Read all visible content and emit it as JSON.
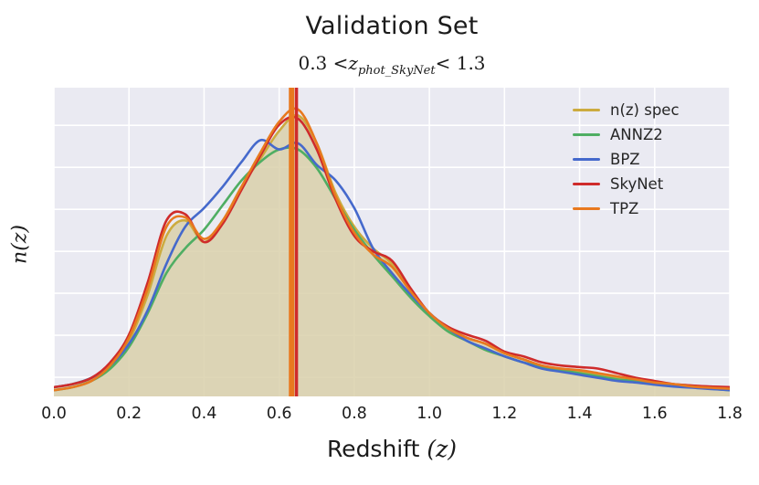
{
  "figure": {
    "title": "Validation Set",
    "subtitle_parts": {
      "prefix": "0.3 <",
      "var": "z",
      "sub": "phot_SkyNet",
      "suffix": "< 1.3"
    },
    "xlabel_text": "Redshift ",
    "xlabel_math": "(z)",
    "ylabel": "n(z)"
  },
  "chart_data": {
    "type": "line",
    "title": "Validation Set",
    "subtitle": "0.3 < z_phot_SkyNet < 1.3",
    "xlabel": "Redshift (z)",
    "ylabel": "n(z)",
    "xlim": [
      0.0,
      1.8
    ],
    "ylim": [
      0.0,
      1.0
    ],
    "xticks": [
      0.0,
      0.2,
      0.4,
      0.6,
      0.8,
      1.0,
      1.2,
      1.4,
      1.6,
      1.8
    ],
    "xtick_labels": [
      "0.0",
      "0.2",
      "0.4",
      "0.6",
      "0.8",
      "1.0",
      "1.2",
      "1.4",
      "1.6",
      "1.8"
    ],
    "ygridlines": [
      0.062,
      0.198,
      0.334,
      0.47,
      0.606,
      0.742,
      0.878
    ],
    "grid": true,
    "legend_position": "upper right",
    "colors": {
      "plot_bg": "#eaeaf2",
      "grid": "#ffffff",
      "fill": "rgba(217,208,170,0.85)",
      "text": "#1b1b1b"
    },
    "vlines": [
      {
        "x": 0.633,
        "color": "#e8791f",
        "width": 6
      },
      {
        "x": 0.646,
        "color": "#cf2b2b",
        "width": 3.5
      }
    ],
    "x": [
      0.0,
      0.05,
      0.1,
      0.15,
      0.2,
      0.25,
      0.3,
      0.35,
      0.4,
      0.45,
      0.5,
      0.55,
      0.6,
      0.65,
      0.7,
      0.75,
      0.8,
      0.85,
      0.9,
      0.95,
      1.0,
      1.05,
      1.1,
      1.15,
      1.2,
      1.25,
      1.3,
      1.35,
      1.4,
      1.45,
      1.5,
      1.55,
      1.6,
      1.65,
      1.7,
      1.75,
      1.8
    ],
    "series": [
      {
        "name": "n(z) spec",
        "color": "#ccab3f",
        "fill": true,
        "values": [
          0.03,
          0.04,
          0.06,
          0.1,
          0.18,
          0.33,
          0.52,
          0.57,
          0.5,
          0.57,
          0.68,
          0.77,
          0.86,
          0.91,
          0.82,
          0.66,
          0.55,
          0.48,
          0.43,
          0.34,
          0.27,
          0.22,
          0.19,
          0.17,
          0.14,
          0.12,
          0.1,
          0.09,
          0.08,
          0.07,
          0.06,
          0.05,
          0.045,
          0.04,
          0.035,
          0.03,
          0.025
        ]
      },
      {
        "name": "ANNZ2",
        "color": "#4fae63",
        "fill": false,
        "values": [
          0.02,
          0.03,
          0.05,
          0.09,
          0.16,
          0.27,
          0.4,
          0.48,
          0.54,
          0.62,
          0.7,
          0.76,
          0.8,
          0.8,
          0.74,
          0.64,
          0.54,
          0.46,
          0.39,
          0.32,
          0.26,
          0.21,
          0.18,
          0.15,
          0.13,
          0.11,
          0.095,
          0.085,
          0.075,
          0.065,
          0.055,
          0.05,
          0.04,
          0.035,
          0.03,
          0.025,
          0.02
        ]
      },
      {
        "name": "BPZ",
        "color": "#4569cc",
        "fill": false,
        "values": [
          0.03,
          0.04,
          0.06,
          0.1,
          0.17,
          0.28,
          0.43,
          0.55,
          0.61,
          0.68,
          0.76,
          0.83,
          0.8,
          0.82,
          0.75,
          0.7,
          0.61,
          0.48,
          0.4,
          0.33,
          0.27,
          0.22,
          0.18,
          0.155,
          0.13,
          0.11,
          0.09,
          0.08,
          0.07,
          0.06,
          0.05,
          0.045,
          0.038,
          0.032,
          0.028,
          0.024,
          0.02
        ]
      },
      {
        "name": "SkyNet",
        "color": "#cf2b2b",
        "fill": false,
        "values": [
          0.03,
          0.04,
          0.06,
          0.11,
          0.2,
          0.37,
          0.57,
          0.59,
          0.5,
          0.56,
          0.67,
          0.78,
          0.88,
          0.9,
          0.8,
          0.64,
          0.52,
          0.47,
          0.44,
          0.35,
          0.27,
          0.225,
          0.2,
          0.18,
          0.145,
          0.13,
          0.11,
          0.1,
          0.095,
          0.09,
          0.075,
          0.06,
          0.05,
          0.04,
          0.035,
          0.032,
          0.03
        ]
      },
      {
        "name": "TPZ",
        "color": "#e8791f",
        "fill": false,
        "values": [
          0.02,
          0.03,
          0.05,
          0.1,
          0.19,
          0.35,
          0.55,
          0.58,
          0.51,
          0.57,
          0.68,
          0.79,
          0.89,
          0.93,
          0.82,
          0.65,
          0.53,
          0.46,
          0.42,
          0.34,
          0.27,
          0.22,
          0.19,
          0.17,
          0.14,
          0.12,
          0.1,
          0.09,
          0.085,
          0.075,
          0.065,
          0.055,
          0.045,
          0.04,
          0.032,
          0.028,
          0.025
        ]
      }
    ]
  }
}
